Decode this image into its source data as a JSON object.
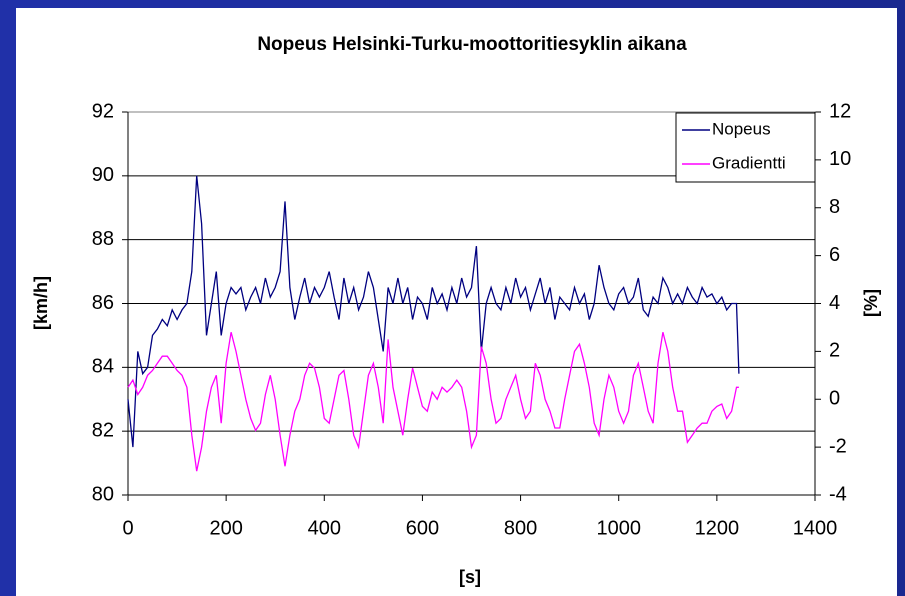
{
  "chart_data": {
    "type": "line",
    "title": "Nopeus Helsinki-Turku-moottoritiesyklin aikana",
    "x_label": "[s]",
    "y_label": "[km/h]",
    "y2_label": "[%]",
    "xlim": [
      0,
      1400
    ],
    "xticks": [
      0,
      200,
      400,
      600,
      800,
      1000,
      1200,
      1400
    ],
    "ylim": [
      80,
      92
    ],
    "yticks": [
      80,
      82,
      84,
      86,
      88,
      90,
      92
    ],
    "y2lim": [
      -4,
      12
    ],
    "y2ticks": [
      -4,
      -2,
      0,
      2,
      4,
      6,
      8,
      10,
      12
    ],
    "grid": true,
    "legend": "upper right",
    "x": [
      0,
      10,
      20,
      30,
      40,
      50,
      60,
      70,
      80,
      90,
      100,
      110,
      120,
      130,
      140,
      150,
      160,
      170,
      180,
      190,
      200,
      210,
      220,
      230,
      240,
      250,
      260,
      270,
      280,
      290,
      300,
      310,
      320,
      330,
      340,
      350,
      360,
      370,
      380,
      390,
      400,
      410,
      420,
      430,
      440,
      450,
      460,
      470,
      480,
      490,
      500,
      510,
      520,
      530,
      540,
      550,
      560,
      570,
      580,
      590,
      600,
      610,
      620,
      630,
      640,
      650,
      660,
      670,
      680,
      690,
      700,
      710,
      720,
      730,
      740,
      750,
      760,
      770,
      780,
      790,
      800,
      810,
      820,
      830,
      840,
      850,
      860,
      870,
      880,
      890,
      900,
      910,
      920,
      930,
      940,
      950,
      960,
      970,
      980,
      990,
      1000,
      1010,
      1020,
      1030,
      1040,
      1050,
      1060,
      1070,
      1080,
      1090,
      1100,
      1110,
      1120,
      1130,
      1140,
      1150,
      1160,
      1170,
      1180,
      1190,
      1200,
      1210,
      1220,
      1230,
      1240,
      1245
    ],
    "series": [
      {
        "name": "Nopeus",
        "color": "#000080",
        "axis": "y",
        "values": [
          83.0,
          81.5,
          84.5,
          83.8,
          84.0,
          85.0,
          85.2,
          85.5,
          85.3,
          85.8,
          85.5,
          85.8,
          86.0,
          87.0,
          90.0,
          88.5,
          85.0,
          86.0,
          87.0,
          85.0,
          86.0,
          86.5,
          86.3,
          86.5,
          85.8,
          86.2,
          86.5,
          86.0,
          86.8,
          86.2,
          86.5,
          87.0,
          89.2,
          86.5,
          85.5,
          86.2,
          86.8,
          86.0,
          86.5,
          86.2,
          86.5,
          87.0,
          86.2,
          85.5,
          86.8,
          86.0,
          86.5,
          85.8,
          86.2,
          87.0,
          86.5,
          85.5,
          84.5,
          86.5,
          86.0,
          86.8,
          86.0,
          86.5,
          85.5,
          86.2,
          86.0,
          85.5,
          86.5,
          86.0,
          86.3,
          85.8,
          86.5,
          86.0,
          86.8,
          86.2,
          86.5,
          87.8,
          84.5,
          86.0,
          86.5,
          86.0,
          85.8,
          86.5,
          86.0,
          86.8,
          86.2,
          86.5,
          85.8,
          86.3,
          86.8,
          86.0,
          86.5,
          85.5,
          86.2,
          86.0,
          85.8,
          86.5,
          86.0,
          86.3,
          85.5,
          86.0,
          87.2,
          86.5,
          86.0,
          85.8,
          86.3,
          86.5,
          86.0,
          86.2,
          86.8,
          85.8,
          85.6,
          86.2,
          86.0,
          86.8,
          86.5,
          86.0,
          86.3,
          86.0,
          86.5,
          86.2,
          86.0,
          86.5,
          86.2,
          86.3,
          86.0,
          86.2,
          85.8,
          86.0,
          86.0,
          83.8
        ]
      },
      {
        "name": "Gradientti",
        "color": "#ff00ff",
        "axis": "y2",
        "values": [
          0.5,
          0.8,
          0.2,
          0.5,
          1.0,
          1.2,
          1.5,
          1.8,
          1.8,
          1.5,
          1.2,
          1.0,
          0.5,
          -1.5,
          -3.0,
          -2.0,
          -0.5,
          0.5,
          1.0,
          -1.0,
          1.5,
          2.8,
          2.0,
          1.0,
          0.0,
          -0.8,
          -1.3,
          -1.0,
          0.2,
          1.0,
          0.0,
          -1.5,
          -2.8,
          -1.5,
          -0.5,
          0.0,
          1.0,
          1.5,
          1.3,
          0.5,
          -0.8,
          -1.0,
          0.0,
          1.0,
          1.2,
          0.0,
          -1.5,
          -2.0,
          -0.5,
          1.0,
          1.5,
          0.5,
          -1.0,
          2.5,
          0.5,
          -0.5,
          -1.5,
          0.0,
          1.3,
          0.5,
          -0.3,
          -0.5,
          0.3,
          0.0,
          0.5,
          0.3,
          0.5,
          0.8,
          0.5,
          -0.5,
          -2.0,
          -1.5,
          2.2,
          1.5,
          0.0,
          -1.0,
          -0.8,
          0.0,
          0.5,
          1.0,
          0.0,
          -0.8,
          -0.5,
          1.5,
          1.0,
          0.0,
          -0.5,
          -1.2,
          -1.2,
          0.0,
          1.0,
          2.0,
          2.3,
          1.5,
          0.5,
          -1.0,
          -1.5,
          0.0,
          1.0,
          0.5,
          -0.5,
          -1.0,
          -0.5,
          1.0,
          1.5,
          0.5,
          -0.5,
          -1.0,
          1.5,
          2.8,
          2.0,
          0.5,
          -0.5,
          -0.5,
          -1.8,
          -1.5,
          -1.2,
          -1.0,
          -1.0,
          -0.5,
          -0.3,
          -0.2,
          -0.8,
          -0.5,
          0.5,
          0.5
        ]
      }
    ]
  }
}
